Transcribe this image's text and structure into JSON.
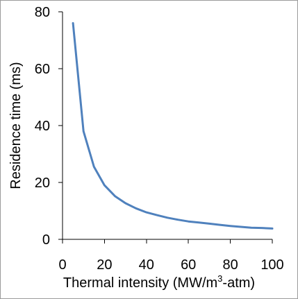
{
  "chart_data": {
    "type": "line",
    "title": "",
    "xlabel": "Thermal intensity (MW/m",
    "xlabel_sup": "3",
    "xlabel_tail": "-atm)",
    "ylabel": "Residence time (ms)",
    "xlim": [
      0,
      100
    ],
    "ylim": [
      0,
      80
    ],
    "x_ticks": [
      "0",
      "20",
      "40",
      "60",
      "80",
      "100"
    ],
    "y_ticks": [
      "0",
      "20",
      "40",
      "60",
      "80"
    ],
    "grid": false,
    "legend": "none",
    "series": [
      {
        "color": "#4f81bd",
        "x": [
          5,
          10,
          15,
          20,
          25,
          30,
          35,
          40,
          45,
          50,
          55,
          60,
          65,
          70,
          75,
          80,
          85,
          90,
          95,
          100
        ],
        "y": [
          76,
          38,
          25.5,
          19,
          15.2,
          12.7,
          10.9,
          9.5,
          8.5,
          7.6,
          6.9,
          6.3,
          5.9,
          5.5,
          5.1,
          4.7,
          4.4,
          4.1,
          4.0,
          3.8
        ]
      }
    ]
  }
}
